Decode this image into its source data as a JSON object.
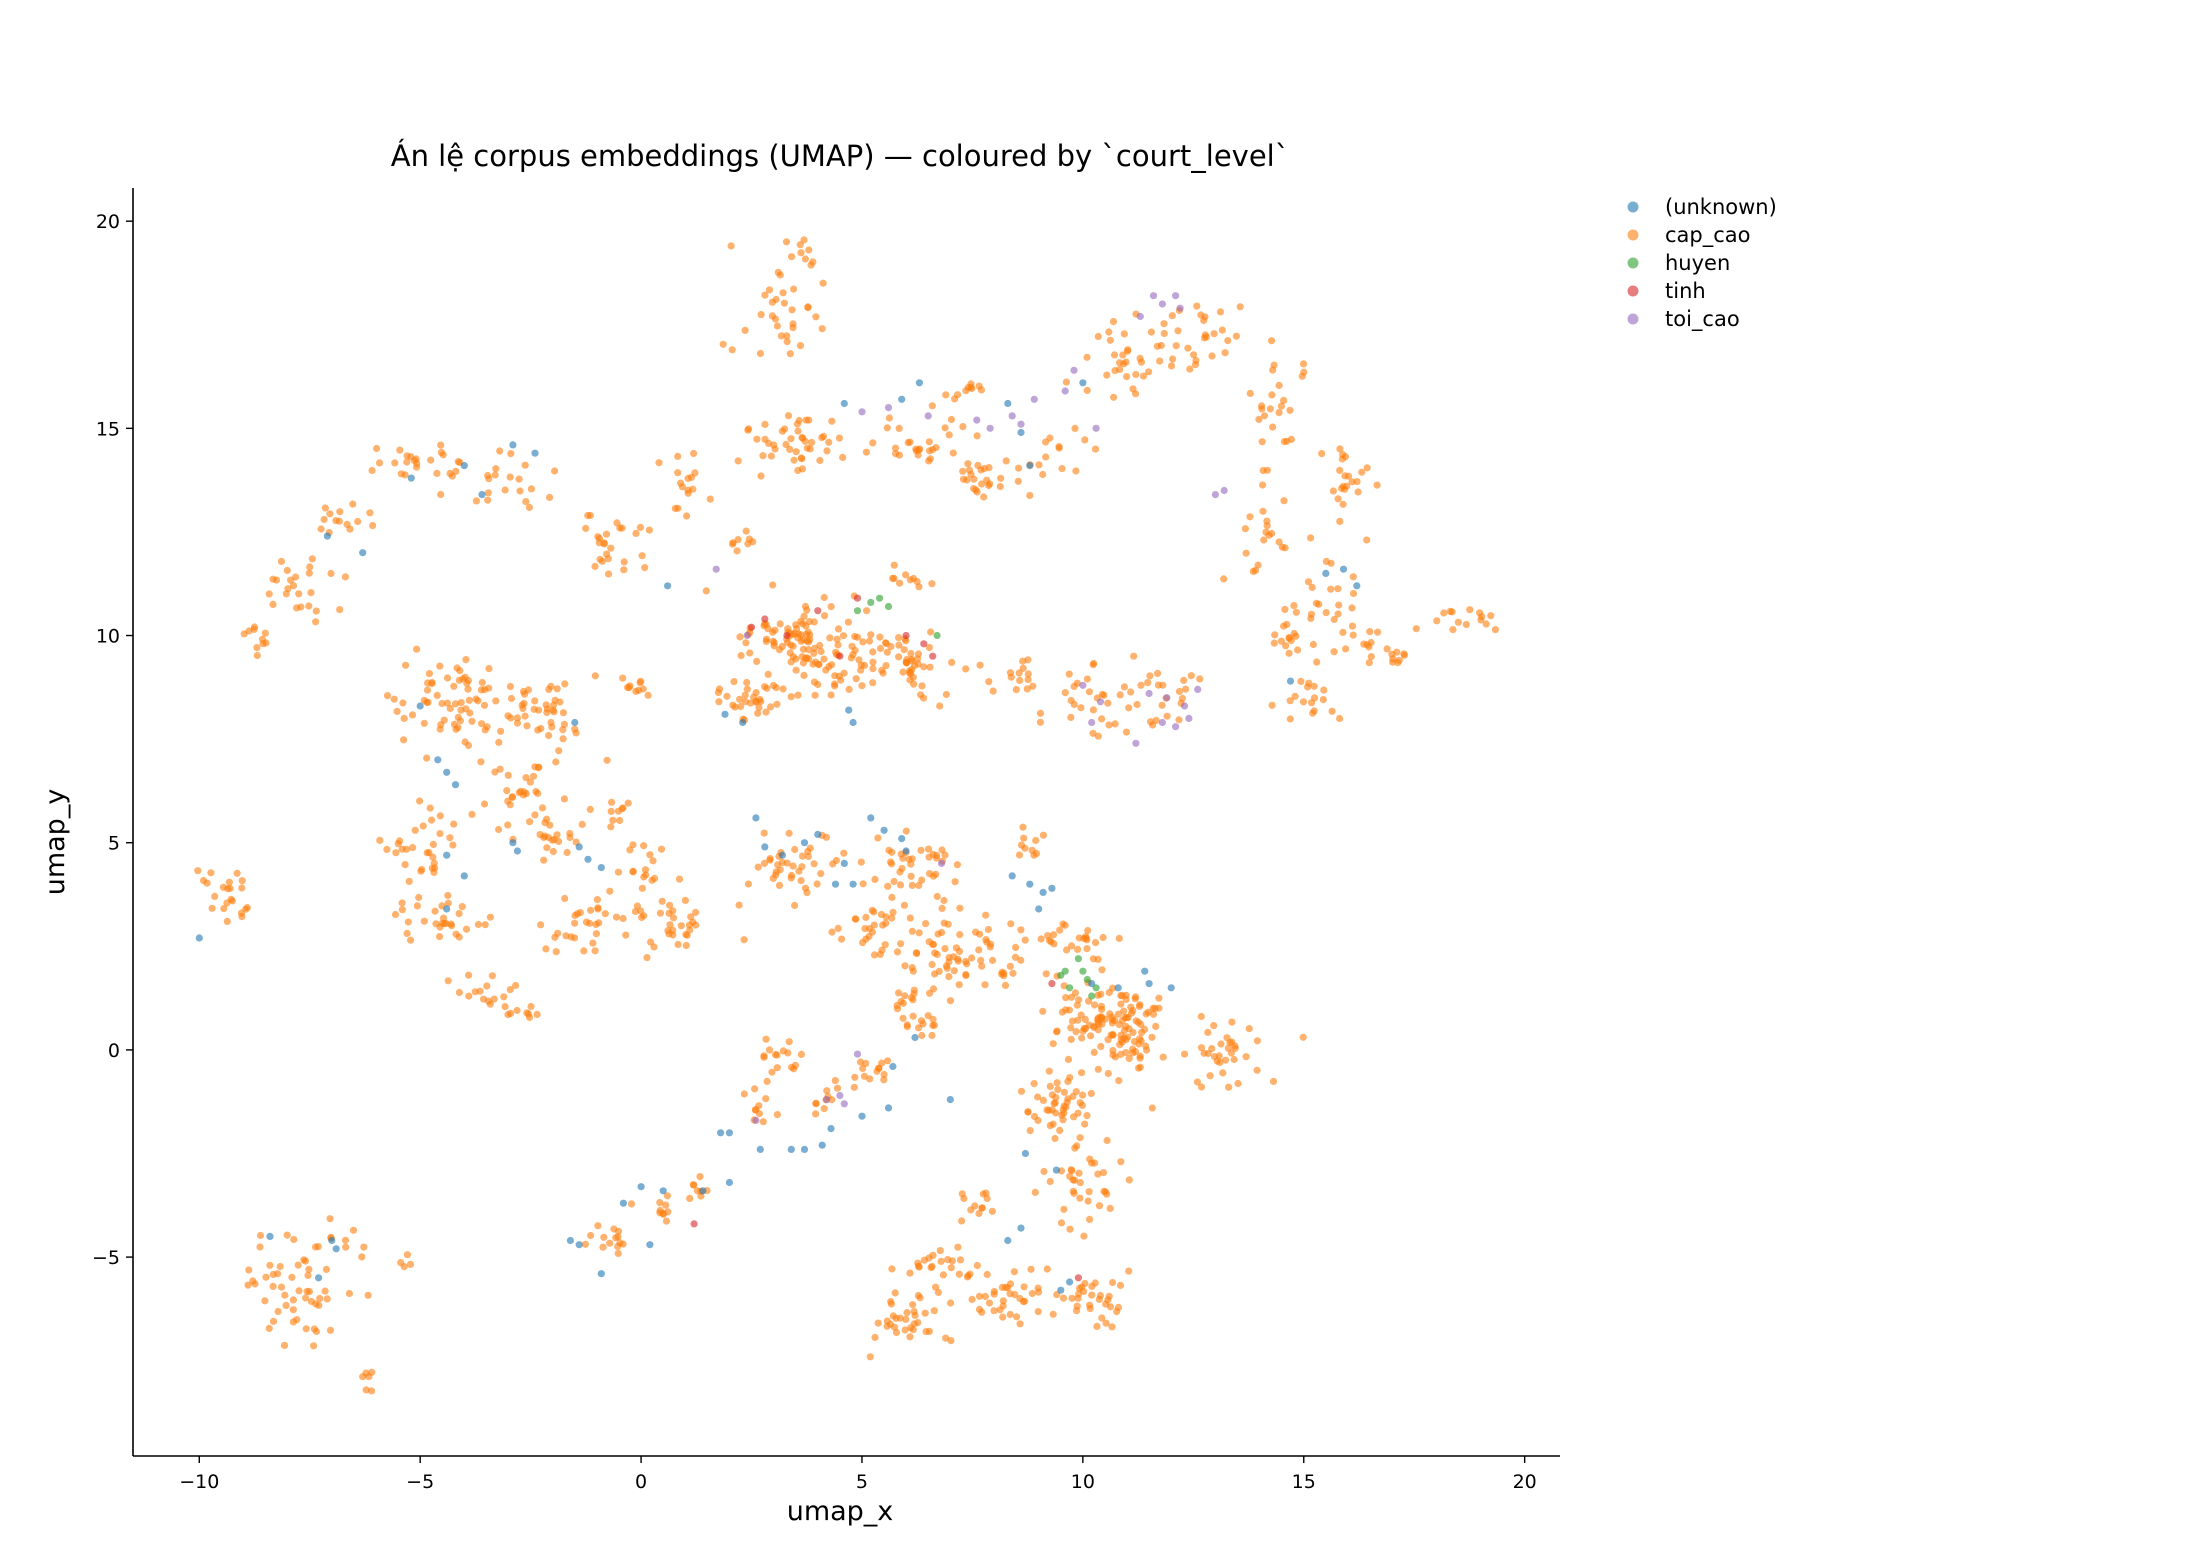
{
  "chart_data": {
    "type": "scatter",
    "title": "Án lệ corpus embeddings (UMAP) — coloured by `court_level`",
    "xlabel": "umap_x",
    "ylabel": "umap_y",
    "xlim": [
      -11.5,
      20.8
    ],
    "ylim": [
      -9.8,
      20.8
    ],
    "xticks": [
      -10,
      -5,
      0,
      5,
      10,
      15,
      20
    ],
    "yticks": [
      -5,
      0,
      5,
      10,
      15,
      20
    ],
    "xtick_labels": [
      "−10",
      "−5",
      "0",
      "5",
      "10",
      "15",
      "20"
    ],
    "ytick_labels": [
      "−5",
      "0",
      "5",
      "10",
      "15",
      "20"
    ],
    "grid": false,
    "legend_position": "outside-top-right",
    "series": [
      {
        "name": "(unknown)",
        "color": "#1f77b4",
        "points": [
          [
            -10.0,
            2.7
          ],
          [
            -7.1,
            12.4
          ],
          [
            -6.3,
            12.0
          ],
          [
            -5.2,
            13.8
          ],
          [
            -4.0,
            14.1
          ],
          [
            -3.6,
            13.4
          ],
          [
            -2.9,
            14.6
          ],
          [
            -2.4,
            14.4
          ],
          [
            -5.0,
            8.3
          ],
          [
            -4.6,
            7.0
          ],
          [
            -4.4,
            6.7
          ],
          [
            -4.2,
            6.4
          ],
          [
            -4.4,
            4.7
          ],
          [
            -4.0,
            4.2
          ],
          [
            -4.4,
            3.4
          ],
          [
            -2.9,
            5.0
          ],
          [
            -2.8,
            4.8
          ],
          [
            -1.5,
            7.9
          ],
          [
            -1.4,
            4.9
          ],
          [
            -1.2,
            4.6
          ],
          [
            -0.9,
            4.4
          ],
          [
            0.6,
            11.2
          ],
          [
            -7.0,
            -4.6
          ],
          [
            -6.9,
            -4.8
          ],
          [
            -7.3,
            -5.5
          ],
          [
            -8.4,
            -4.5
          ],
          [
            -1.6,
            -4.6
          ],
          [
            -1.4,
            -4.7
          ],
          [
            -0.9,
            -5.4
          ],
          [
            -0.4,
            -3.7
          ],
          [
            0.0,
            -3.3
          ],
          [
            0.2,
            -4.7
          ],
          [
            0.5,
            -3.4
          ],
          [
            1.8,
            -2.0
          ],
          [
            2.0,
            -2.0
          ],
          [
            1.9,
            8.1
          ],
          [
            2.3,
            7.9
          ],
          [
            2.6,
            5.6
          ],
          [
            2.8,
            4.9
          ],
          [
            3.2,
            4.7
          ],
          [
            3.7,
            5.0
          ],
          [
            4.0,
            5.2
          ],
          [
            4.4,
            4.0
          ],
          [
            4.6,
            4.5
          ],
          [
            4.8,
            4.0
          ],
          [
            5.2,
            5.6
          ],
          [
            5.5,
            5.3
          ],
          [
            5.9,
            5.1
          ],
          [
            6.0,
            4.8
          ],
          [
            4.6,
            15.6
          ],
          [
            5.9,
            15.7
          ],
          [
            6.3,
            16.1
          ],
          [
            8.3,
            15.6
          ],
          [
            8.6,
            14.9
          ],
          [
            8.8,
            14.1
          ],
          [
            10.0,
            16.1
          ],
          [
            4.7,
            8.2
          ],
          [
            4.8,
            7.9
          ],
          [
            8.4,
            4.2
          ],
          [
            8.8,
            4.0
          ],
          [
            9.1,
            3.8
          ],
          [
            9.3,
            3.9
          ],
          [
            9.0,
            3.4
          ],
          [
            10.2,
            1.6
          ],
          [
            10.8,
            1.5
          ],
          [
            11.4,
            1.9
          ],
          [
            11.5,
            1.6
          ],
          [
            12.0,
            1.5
          ],
          [
            2.7,
            -2.4
          ],
          [
            3.4,
            -2.4
          ],
          [
            3.7,
            -2.4
          ],
          [
            4.1,
            -2.3
          ],
          [
            4.3,
            -1.9
          ],
          [
            5.0,
            -1.6
          ],
          [
            5.6,
            -1.4
          ],
          [
            7.0,
            -1.2
          ],
          [
            8.7,
            -2.5
          ],
          [
            9.4,
            -2.9
          ],
          [
            8.3,
            -4.6
          ],
          [
            8.6,
            -4.3
          ],
          [
            9.5,
            -5.8
          ],
          [
            9.7,
            -5.6
          ],
          [
            6.2,
            0.3
          ],
          [
            5.7,
            -0.4
          ],
          [
            15.5,
            11.5
          ],
          [
            15.9,
            11.6
          ],
          [
            16.2,
            11.2
          ],
          [
            14.7,
            8.9
          ],
          [
            1.4,
            -3.4
          ],
          [
            2.0,
            -3.2
          ]
        ]
      },
      {
        "name": "cap_cao",
        "color": "#ff7f0e",
        "clusters": [
          [
            -9.5,
            3.4,
            0.5,
            1.0,
            22
          ],
          [
            -8.8,
            10.0,
            0.4,
            0.3,
            10
          ],
          [
            -7.8,
            11.2,
            0.9,
            0.9,
            24
          ],
          [
            -6.7,
            12.8,
            0.7,
            0.6,
            14
          ],
          [
            -5.0,
            14.2,
            0.9,
            0.4,
            24
          ],
          [
            -3.1,
            13.6,
            0.8,
            0.5,
            20
          ],
          [
            -4.2,
            8.4,
            1.5,
            0.9,
            70
          ],
          [
            -2.1,
            8.1,
            1.0,
            0.9,
            40
          ],
          [
            -2.7,
            6.3,
            0.7,
            0.8,
            30
          ],
          [
            -1.9,
            5.2,
            0.6,
            0.5,
            20
          ],
          [
            -0.7,
            5.8,
            0.4,
            0.3,
            10
          ],
          [
            -0.3,
            8.8,
            0.4,
            0.4,
            10
          ],
          [
            -4.9,
            4.8,
            0.7,
            0.8,
            30
          ],
          [
            -4.6,
            3.1,
            1.0,
            0.5,
            30
          ],
          [
            -1.1,
            3.0,
            1.0,
            0.6,
            30
          ],
          [
            0.7,
            2.9,
            1.0,
            0.8,
            35
          ],
          [
            0.2,
            4.4,
            0.6,
            0.5,
            14
          ],
          [
            -3.2,
            1.4,
            0.7,
            0.4,
            16
          ],
          [
            -2.6,
            0.9,
            0.4,
            0.2,
            8
          ],
          [
            -0.9,
            12.2,
            0.8,
            0.8,
            26
          ],
          [
            1.1,
            13.6,
            0.6,
            0.6,
            16
          ],
          [
            2.3,
            12.3,
            0.5,
            0.3,
            8
          ],
          [
            3.2,
            17.8,
            0.9,
            0.9,
            30
          ],
          [
            3.6,
            19.1,
            0.5,
            0.3,
            10
          ],
          [
            2.5,
            8.4,
            0.7,
            0.5,
            30
          ],
          [
            3.8,
            9.8,
            1.6,
            1.1,
            120
          ],
          [
            6.0,
            9.4,
            1.2,
            0.8,
            55
          ],
          [
            3.6,
            14.7,
            1.4,
            0.7,
            45
          ],
          [
            6.4,
            14.7,
            0.9,
            0.6,
            25
          ],
          [
            7.8,
            13.7,
            0.9,
            0.6,
            25
          ],
          [
            9.3,
            14.4,
            0.6,
            0.6,
            14
          ],
          [
            8.5,
            9.0,
            0.6,
            0.6,
            14
          ],
          [
            10.4,
            8.5,
            1.3,
            0.9,
            35
          ],
          [
            12.1,
            8.6,
            0.7,
            0.6,
            16
          ],
          [
            10.8,
            16.6,
            1.0,
            0.9,
            30
          ],
          [
            12.6,
            17.2,
            1.0,
            0.8,
            30
          ],
          [
            14.4,
            15.4,
            0.6,
            1.2,
            24
          ],
          [
            14.1,
            12.4,
            0.5,
            1.2,
            20
          ],
          [
            15.8,
            13.5,
            0.6,
            0.9,
            24
          ],
          [
            14.5,
            10.0,
            0.5,
            0.4,
            12
          ],
          [
            15.6,
            10.8,
            0.7,
            0.8,
            25
          ],
          [
            15.2,
            8.5,
            0.6,
            0.6,
            18
          ],
          [
            16.7,
            9.8,
            0.6,
            0.5,
            14
          ],
          [
            18.7,
            10.4,
            0.6,
            0.3,
            14
          ],
          [
            17.1,
            9.4,
            0.3,
            0.2,
            6
          ],
          [
            3.5,
            4.4,
            1.0,
            0.8,
            40
          ],
          [
            6.2,
            4.5,
            0.9,
            0.8,
            40
          ],
          [
            7.3,
            2.4,
            1.4,
            0.9,
            70
          ],
          [
            5.3,
            3.0,
            0.8,
            0.6,
            30
          ],
          [
            8.7,
            4.9,
            0.4,
            0.4,
            10
          ],
          [
            9.8,
            2.6,
            0.7,
            0.5,
            20
          ],
          [
            10.4,
            0.8,
            1.1,
            1.0,
            90
          ],
          [
            9.5,
            -1.3,
            0.8,
            0.8,
            50
          ],
          [
            11.2,
            0.3,
            0.7,
            0.9,
            40
          ],
          [
            13.3,
            0.0,
            0.9,
            0.8,
            35
          ],
          [
            9.8,
            -3.2,
            0.9,
            0.9,
            35
          ],
          [
            6.2,
            0.9,
            0.6,
            0.7,
            25
          ],
          [
            5.1,
            -0.4,
            0.6,
            0.6,
            16
          ],
          [
            3.2,
            -0.2,
            0.5,
            0.6,
            16
          ],
          [
            2.5,
            -1.5,
            0.5,
            0.4,
            10
          ],
          [
            4.2,
            -1.2,
            0.4,
            0.3,
            8
          ],
          [
            0.4,
            -3.8,
            0.4,
            0.3,
            10
          ],
          [
            -0.8,
            -4.5,
            0.5,
            0.4,
            14
          ],
          [
            1.4,
            -3.4,
            0.3,
            0.5,
            8
          ],
          [
            6.7,
            -5.3,
            0.9,
            0.6,
            30
          ],
          [
            5.9,
            -6.6,
            0.9,
            0.6,
            30
          ],
          [
            8.4,
            -6.0,
            0.9,
            0.6,
            35
          ],
          [
            10.4,
            -6.0,
            0.9,
            0.6,
            30
          ],
          [
            7.7,
            -3.8,
            0.5,
            0.5,
            12
          ],
          [
            -7.6,
            -5.8,
            0.9,
            1.1,
            40
          ],
          [
            -8.6,
            -5.3,
            0.3,
            0.7,
            10
          ],
          [
            -6.2,
            -7.9,
            0.2,
            0.3,
            6
          ],
          [
            -6.8,
            -4.6,
            0.5,
            0.4,
            10
          ],
          [
            -5.3,
            -5.0,
            0.2,
            0.2,
            4
          ],
          [
            5.8,
            11.3,
            0.6,
            0.3,
            10
          ],
          [
            7.2,
            15.9,
            0.6,
            0.2,
            10
          ]
        ]
      },
      {
        "name": "huyen",
        "color": "#2ca02c",
        "points": [
          [
            4.9,
            10.6
          ],
          [
            5.2,
            10.8
          ],
          [
            5.4,
            10.9
          ],
          [
            5.6,
            10.7
          ],
          [
            6.7,
            10.0
          ],
          [
            9.5,
            1.8
          ],
          [
            9.7,
            1.5
          ],
          [
            9.9,
            2.2
          ],
          [
            10.0,
            1.9
          ],
          [
            10.1,
            1.7
          ],
          [
            10.3,
            1.5
          ],
          [
            9.6,
            1.9
          ],
          [
            10.2,
            1.3
          ]
        ]
      },
      {
        "name": "tinh",
        "color": "#d62728",
        "points": [
          [
            2.5,
            10.2
          ],
          [
            2.8,
            10.4
          ],
          [
            3.3,
            10.0
          ],
          [
            4.0,
            10.6
          ],
          [
            4.9,
            10.9
          ],
          [
            6.0,
            10.0
          ],
          [
            6.4,
            9.8
          ],
          [
            6.6,
            9.5
          ],
          [
            4.5,
            9.5
          ],
          [
            9.9,
            -5.5
          ],
          [
            1.2,
            -4.2
          ],
          [
            9.3,
            1.6
          ]
        ]
      },
      {
        "name": "toi_cao",
        "color": "#9467bd",
        "points": [
          [
            1.7,
            11.6
          ],
          [
            2.4,
            10.0
          ],
          [
            5.0,
            15.4
          ],
          [
            5.6,
            15.5
          ],
          [
            6.5,
            15.3
          ],
          [
            7.6,
            15.2
          ],
          [
            7.9,
            15.0
          ],
          [
            8.4,
            15.3
          ],
          [
            8.6,
            15.1
          ],
          [
            8.9,
            15.7
          ],
          [
            9.6,
            15.9
          ],
          [
            9.8,
            16.4
          ],
          [
            10.3,
            15.0
          ],
          [
            11.6,
            18.2
          ],
          [
            11.8,
            18.0
          ],
          [
            12.1,
            18.2
          ],
          [
            12.2,
            17.9
          ],
          [
            11.3,
            17.7
          ],
          [
            13.2,
            13.5
          ],
          [
            10.0,
            8.8
          ],
          [
            10.4,
            8.4
          ],
          [
            11.2,
            7.4
          ],
          [
            11.9,
            8.5
          ],
          [
            12.1,
            7.8
          ],
          [
            12.4,
            8.0
          ],
          [
            12.6,
            8.7
          ],
          [
            11.8,
            7.9
          ],
          [
            12.3,
            8.3
          ],
          [
            2.6,
            -1.7
          ],
          [
            4.2,
            -1.2
          ],
          [
            4.5,
            -1.1
          ],
          [
            4.6,
            -1.3
          ],
          [
            6.8,
            4.5
          ],
          [
            4.9,
            -0.1
          ],
          [
            10.2,
            7.9
          ],
          [
            11.5,
            8.6
          ],
          [
            13.0,
            13.4
          ]
        ]
      }
    ]
  }
}
